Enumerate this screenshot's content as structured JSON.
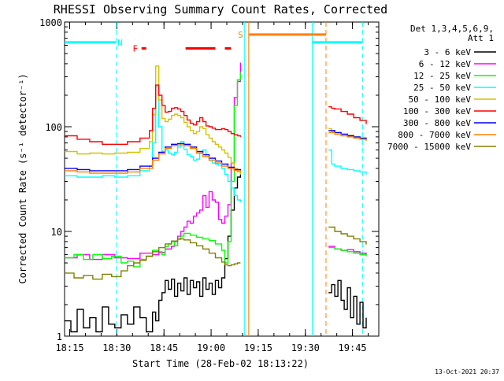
{
  "chart_data": {
    "type": "line",
    "title": "RHESSI Observing Summary Count Rates, Corrected",
    "xlabel": "Start Time (28-Feb-02 18:13:22)",
    "ylabel": "Corrected Count Rate (s⁻¹ detector⁻¹)",
    "x_unit": "minutes after 18:13:22 UT",
    "xlim": [
      0,
      100
    ],
    "ylim": [
      1,
      1000
    ],
    "yscale": "log",
    "x_ticks": [
      {
        "t": 1.63,
        "label": "18:15"
      },
      {
        "t": 16.63,
        "label": "18:30"
      },
      {
        "t": 31.63,
        "label": "18:45"
      },
      {
        "t": 46.63,
        "label": "19:00"
      },
      {
        "t": 61.63,
        "label": "19:15"
      },
      {
        "t": 76.63,
        "label": "19:30"
      },
      {
        "t": 91.63,
        "label": "19:45"
      }
    ],
    "y_ticks": [
      {
        "v": 1,
        "label": "1"
      },
      {
        "v": 10,
        "label": "10"
      },
      {
        "v": 100,
        "label": "100"
      },
      {
        "v": 1000,
        "label": "1000"
      }
    ],
    "legend_header": [
      "Det 1,3,4,5,6,9,",
      "Att 1"
    ],
    "legend_position": "right",
    "series": [
      {
        "name": "3 - 6 keV",
        "color": "#000000",
        "segments": [
          {
            "x": [
              0,
              2,
              4,
              6,
              8,
              10,
              12,
              14,
              16,
              18,
              20,
              22,
              24,
              26,
              28,
              29,
              30,
              31,
              32,
              33,
              34,
              35,
              36,
              37,
              38,
              39,
              40,
              41,
              42,
              43,
              44,
              45,
              46,
              47,
              48,
              49,
              50,
              51,
              52,
              53,
              54,
              55,
              56
            ],
            "y": [
              1.4,
              1.1,
              1.8,
              1.2,
              1.5,
              1.1,
              1.9,
              1.3,
              1.2,
              1.6,
              1.3,
              1.9,
              1.5,
              1.1,
              1.7,
              1.4,
              2.2,
              2.6,
              3.4,
              2.8,
              3.5,
              2.4,
              3.2,
              2.7,
              3.6,
              2.5,
              3.4,
              2.9,
              3.3,
              2.4,
              3.6,
              2.8,
              3.2,
              2.5,
              3.4,
              2.9,
              3.6,
              5.5,
              9,
              16,
              26,
              33,
              35
            ]
          },
          {
            "x": [
              84,
              85,
              86,
              87,
              88,
              89,
              90,
              91,
              92,
              93,
              94,
              95,
              96
            ],
            "y": [
              2.6,
              3.1,
              2.4,
              3.4,
              2.2,
              1.8,
              2.9,
              1.5,
              2.4,
              1.3,
              2.1,
              1.2,
              1.5
            ]
          }
        ]
      },
      {
        "name": "6 - 12 keV",
        "color": "#ff00ff",
        "segments": [
          {
            "x": [
              0,
              4,
              8,
              12,
              16,
              20,
              24,
              28,
              30,
              32,
              34,
              35,
              36,
              37,
              38,
              39,
              40,
              41,
              42,
              43,
              44,
              45,
              46,
              47,
              48,
              49,
              50,
              51,
              52,
              53,
              54,
              55,
              56
            ],
            "y": [
              5.6,
              6,
              5.4,
              6,
              5.6,
              5.5,
              6.2,
              6,
              6.3,
              6.8,
              7.2,
              8,
              9,
              10,
              11,
              12.5,
              12,
              14,
              15,
              16,
              22,
              17,
              24,
              20,
              19,
              13,
              12,
              14,
              18,
              45,
              190,
              270,
              410
            ]
          },
          {
            "x": [
              84,
              86,
              88,
              90,
              92,
              94,
              96
            ],
            "y": [
              7.2,
              6.8,
              6.6,
              6.7,
              6.4,
              6.2,
              6
            ]
          }
        ]
      },
      {
        "name": "12 - 25 keV",
        "color": "#00ff00",
        "segments": [
          {
            "x": [
              0,
              3,
              6,
              9,
              12,
              15,
              18,
              20,
              22,
              24,
              26,
              28,
              30,
              31,
              32,
              33,
              34,
              35,
              36,
              37,
              38,
              40,
              42,
              44,
              46,
              48,
              50,
              51,
              52,
              53,
              54,
              55,
              56
            ],
            "y": [
              5.6,
              6,
              5.4,
              6,
              5.5,
              5.8,
              5,
              5.2,
              4.6,
              5.4,
              5.8,
              6.6,
              6.4,
              6,
              7.2,
              7.6,
              8,
              7.3,
              8.4,
              9,
              9.6,
              9.2,
              8.8,
              8.5,
              8.2,
              7.6,
              6.6,
              5,
              8,
              30,
              160,
              280,
              330
            ]
          },
          {
            "x": [
              84,
              86,
              88,
              90,
              92,
              94,
              96
            ],
            "y": [
              7,
              6.8,
              6.6,
              6.4,
              6.2,
              6,
              5.8
            ]
          }
        ]
      },
      {
        "name": "25 - 50 keV",
        "color": "#00ffff",
        "segments": [
          {
            "x": [
              0,
              4,
              8,
              12,
              16,
              20,
              24,
              27,
              28,
              29,
              30,
              31,
              32,
              33,
              34,
              35,
              36,
              37,
              38,
              39,
              40,
              41,
              42,
              43,
              44,
              45,
              46,
              47,
              48,
              49,
              50,
              51,
              52,
              53,
              54,
              55,
              56
            ],
            "y": [
              34,
              33,
              33,
              34,
              33,
              34,
              38,
              42,
              70,
              240,
              100,
              58,
              60,
              56,
              54,
              57,
              64,
              72,
              61,
              54,
              52,
              48,
              49,
              56,
              60,
              52,
              48,
              45,
              44,
              43,
              40,
              35,
              30,
              26,
              22,
              20,
              19
            ]
          },
          {
            "x": [
              84,
              85,
              86,
              88,
              90,
              92,
              94,
              96
            ],
            "y": [
              60,
              44,
              42,
              40,
              39,
              38,
              37,
              35
            ]
          }
        ]
      },
      {
        "name": "50 - 100 keV",
        "color": "#d4c400",
        "segments": [
          {
            "x": [
              0,
              4,
              8,
              12,
              16,
              20,
              24,
              27,
              28,
              29,
              30,
              31,
              32,
              33,
              34,
              35,
              36,
              37,
              38,
              39,
              40,
              41,
              42,
              43,
              44,
              45,
              46,
              47,
              48,
              49,
              50,
              51,
              52,
              53,
              54,
              55,
              56
            ],
            "y": [
              58,
              55,
              56,
              55,
              56,
              57,
              62,
              72,
              130,
              380,
              180,
              120,
              112,
              118,
              128,
              132,
              128,
              122,
              110,
              100,
              92,
              86,
              90,
              100,
              96,
              84,
              78,
              72,
              68,
              64,
              60,
              56,
              51,
              45,
              40,
              37,
              35
            ]
          },
          {
            "x": [
              84,
              85,
              86,
              88,
              90,
              92,
              94,
              96
            ],
            "y": [
              96,
              90,
              88,
              85,
              83,
              80,
              77,
              73
            ]
          }
        ]
      },
      {
        "name": "100 - 300 keV",
        "color": "#ff0000",
        "segments": [
          {
            "x": [
              0,
              4,
              8,
              12,
              16,
              20,
              24,
              27,
              28,
              29,
              30,
              31,
              32,
              33,
              34,
              35,
              36,
              37,
              38,
              39,
              40,
              41,
              42,
              43,
              44,
              45,
              46,
              47,
              48,
              49,
              50,
              51,
              52,
              53,
              54,
              55,
              56
            ],
            "y": [
              82,
              76,
              72,
              68,
              68,
              72,
              78,
              92,
              150,
              250,
              200,
              160,
              138,
              140,
              150,
              152,
              148,
              140,
              128,
              116,
              108,
              104,
              112,
              122,
              112,
              102,
              100,
              97,
              94,
              94,
              96,
              94,
              90,
              86,
              84,
              82,
              80
            ]
          },
          {
            "x": [
              84,
              85,
              86,
              88,
              90,
              92,
              94,
              96
            ],
            "y": [
              155,
              150,
              148,
              140,
              132,
              122,
              115,
              106
            ]
          }
        ]
      },
      {
        "name": "300 - 800 keV",
        "color": "#0000ff",
        "segments": [
          {
            "x": [
              0,
              4,
              8,
              12,
              16,
              20,
              24,
              28,
              30,
              32,
              34,
              36,
              38,
              40,
              42,
              44,
              46,
              48,
              50,
              52,
              54,
              56
            ],
            "y": [
              40,
              39,
              38,
              38,
              38,
              39,
              42,
              50,
              57,
              64,
              68,
              69,
              68,
              64,
              58,
              54,
              50,
              47,
              44,
              41,
              39,
              38
            ]
          },
          {
            "x": [
              84,
              86,
              88,
              90,
              92,
              94,
              96
            ],
            "y": [
              92,
              88,
              85,
              82,
              80,
              78,
              76
            ]
          }
        ]
      },
      {
        "name": "800 - 7000 keV",
        "color": "#ff8000",
        "segments": [
          {
            "x": [
              0,
              4,
              8,
              12,
              16,
              20,
              24,
              28,
              30,
              32,
              34,
              36,
              38,
              40,
              42,
              44,
              46,
              48,
              50,
              52,
              54,
              56
            ],
            "y": [
              38,
              37,
              36,
              36,
              36,
              37,
              40,
              48,
              55,
              62,
              66,
              67,
              66,
              62,
              56,
              52,
              48,
              45,
              42,
              40,
              38,
              37
            ]
          },
          {
            "x": [
              84,
              86,
              88,
              90,
              92,
              94,
              96
            ],
            "y": [
              88,
              85,
              82,
              80,
              78,
              76,
              74
            ]
          }
        ]
      },
      {
        "name": "7000 - 15000 keV",
        "color": "#808000",
        "segments": [
          {
            "x": [
              0,
              3,
              6,
              9,
              12,
              15,
              18,
              20,
              22,
              24,
              26,
              28,
              30,
              32,
              34,
              36,
              38,
              40,
              42,
              44,
              46,
              48,
              50,
              51,
              52,
              53,
              54,
              55,
              56
            ],
            "y": [
              4,
              3.6,
              3.8,
              3.5,
              3.9,
              3.7,
              4.2,
              4.7,
              5,
              5.3,
              5.8,
              6.4,
              7,
              7.6,
              8.1,
              8.5,
              8.3,
              7.8,
              7.3,
              6.8,
              6.2,
              5.6,
              5.1,
              4.8,
              4.7,
              4.8,
              4.9,
              5,
              5
            ]
          },
          {
            "x": [
              84,
              86,
              88,
              90,
              92,
              94,
              96
            ],
            "y": [
              11,
              10,
              9.5,
              9,
              8.5,
              8,
              7.5
            ]
          }
        ]
      }
    ],
    "vertical_lines": [
      {
        "t": 16.5,
        "color": "#00ffff",
        "style": "dashed"
      },
      {
        "t": 57.2,
        "color": "#00ffff",
        "style": "solid"
      },
      {
        "t": 58.6,
        "color": "#ff8000",
        "style": "solid"
      },
      {
        "t": 78.8,
        "color": "#00ffff",
        "style": "solid"
      },
      {
        "t": 83.2,
        "color": "#ff8000",
        "style": "dashed"
      },
      {
        "t": 94.8,
        "color": "#00ffff",
        "style": "dashed"
      }
    ],
    "flag_bars": [
      {
        "label": "N",
        "color": "#00ffff",
        "y": 640,
        "segments": [
          [
            0,
            16.3
          ],
          [
            78.9,
            94.8
          ]
        ],
        "label_at": 17.7
      },
      {
        "label": "F",
        "color": "#ff0000",
        "y": 560,
        "segments": [
          [
            24.5,
            26
          ],
          [
            38.5,
            48
          ],
          [
            51,
            53
          ]
        ],
        "label_at": 22.5
      },
      {
        "label": "S",
        "color": "#ff8000",
        "y": 760,
        "segments": [
          [
            58.7,
            83.2
          ]
        ],
        "label_at": 56
      }
    ]
  },
  "footer": {
    "date": "13-Oct-2021 20:37"
  }
}
